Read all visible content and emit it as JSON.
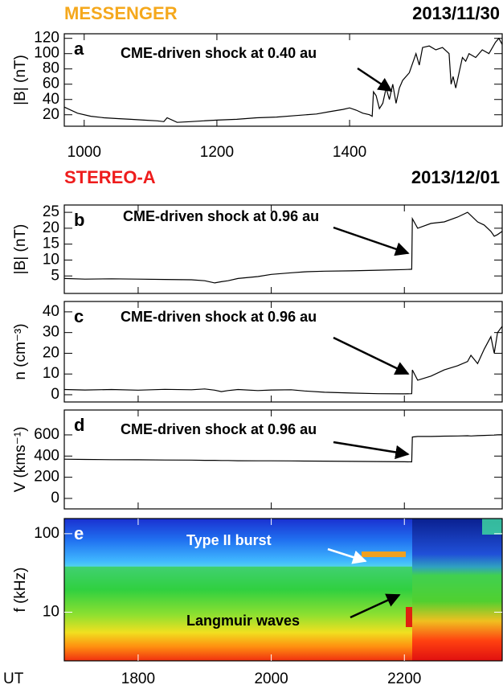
{
  "chart_data": [
    {
      "type": "line",
      "title": "MESSENGER",
      "subtitle": "2013/11/30",
      "panel_label": "a",
      "annotation": "CME-driven shock at 0.40 au",
      "ylabel": "|B| (nT)",
      "color": "#000000",
      "x": [
        970,
        990,
        1010,
        1030,
        1050,
        1070,
        1090,
        1110,
        1120,
        1125,
        1140,
        1160,
        1180,
        1200,
        1230,
        1260,
        1290,
        1320,
        1350,
        1370,
        1390,
        1400,
        1410,
        1420,
        1430,
        1434,
        1436,
        1440,
        1445,
        1450,
        1455,
        1460,
        1465,
        1470,
        1475,
        1480,
        1490,
        1500,
        1505,
        1510,
        1520,
        1530,
        1540,
        1550,
        1553,
        1556,
        1560,
        1565,
        1570,
        1575,
        1580,
        1590,
        1600,
        1610,
        1620,
        1625,
        1630
      ],
      "values": [
        30,
        22,
        18,
        16,
        15,
        14,
        13,
        12,
        11,
        16,
        10,
        11,
        12,
        13,
        14,
        16,
        17,
        19,
        21,
        24,
        27,
        29,
        26,
        22,
        20,
        18,
        50,
        45,
        28,
        35,
        55,
        40,
        60,
        35,
        55,
        65,
        75,
        100,
        85,
        108,
        110,
        105,
        108,
        100,
        60,
        70,
        55,
        75,
        95,
        90,
        100,
        95,
        105,
        100,
        115,
        120,
        112
      ],
      "xlim": [
        970,
        1630
      ],
      "xticks": [
        1000,
        1200,
        1400
      ],
      "ylim": [
        5,
        126
      ],
      "yticks": [
        20,
        40,
        60,
        80,
        100,
        120
      ]
    },
    {
      "type": "line",
      "title": "STEREO-A",
      "subtitle": "2013/12/01",
      "panel_label": "b",
      "annotation": "CME-driven shock at 0.96 au",
      "ylabel": "|B| (nT)",
      "color": "#000000",
      "x": [
        1689,
        1720,
        1760,
        1800,
        1840,
        1880,
        1900,
        1915,
        1925,
        1935,
        1950,
        1980,
        2000,
        2030,
        2050,
        2080,
        2120,
        2160,
        2200,
        2211,
        2212,
        2220,
        2240,
        2260,
        2280,
        2295,
        2300,
        2310,
        2320,
        2330,
        2335,
        2340,
        2347
      ],
      "values": [
        4.2,
        4,
        4.1,
        4,
        3.9,
        3.8,
        3.5,
        2.8,
        3.2,
        3.5,
        4.2,
        4.8,
        5.5,
        6,
        6.3,
        6.5,
        6.6,
        6.8,
        7,
        7.1,
        23,
        20,
        21.5,
        22,
        23.5,
        25,
        24,
        22,
        21,
        19,
        17.5,
        18,
        19
      ],
      "xlim": [
        1689,
        2347
      ],
      "xticks": [
        1800,
        2000,
        2200
      ],
      "ylim": [
        -0.5,
        27.3
      ],
      "yticks": [
        5,
        10,
        15,
        20,
        25
      ]
    },
    {
      "type": "line",
      "panel_label": "c",
      "annotation": "CME-driven shock at 0.96 au",
      "ylabel": "n (cm⁻³)",
      "color": "#000000",
      "x": [
        1689,
        1720,
        1760,
        1800,
        1840,
        1880,
        1900,
        1915,
        1925,
        1935,
        1950,
        1980,
        2000,
        2030,
        2050,
        2080,
        2120,
        2160,
        2200,
        2211,
        2212,
        2220,
        2240,
        2260,
        2280,
        2295,
        2300,
        2310,
        2320,
        2330,
        2335,
        2340,
        2347
      ],
      "values": [
        2.5,
        2.3,
        2.5,
        2.2,
        2.6,
        2.4,
        2.8,
        2.2,
        1.5,
        2,
        2.5,
        2,
        2.3,
        2.4,
        1.8,
        1.2,
        0.8,
        0.5,
        0.4,
        0.5,
        12,
        7,
        9,
        12,
        14,
        16,
        19,
        15,
        22,
        28,
        20,
        30,
        33
      ],
      "xlim": [
        1689,
        2347
      ],
      "xticks": [
        1800,
        2000,
        2200
      ],
      "ylim": [
        -3.5,
        45
      ],
      "yticks": [
        0,
        10,
        20,
        30,
        40
      ]
    },
    {
      "type": "line",
      "panel_label": "d",
      "annotation": "CME-driven shock at 0.96 au",
      "ylabel": "V (kms⁻¹)",
      "color": "#000000",
      "x": [
        1689,
        1720,
        1760,
        1800,
        1840,
        1880,
        1900,
        1915,
        1925,
        1935,
        1950,
        1980,
        2000,
        2030,
        2050,
        2080,
        2120,
        2160,
        2200,
        2211,
        2212,
        2220,
        2240,
        2260,
        2280,
        2295,
        2300,
        2310,
        2320,
        2330,
        2335,
        2340,
        2347
      ],
      "values": [
        370,
        368,
        366,
        365,
        363,
        362,
        360,
        360,
        358,
        358,
        356,
        355,
        355,
        354,
        353,
        352,
        350,
        348,
        346,
        345,
        580,
        585,
        585,
        588,
        590,
        592,
        590,
        593,
        595,
        597,
        598,
        600,
        602
      ],
      "xlim": [
        1689,
        2347
      ],
      "xticks": [
        1800,
        2000,
        2200
      ],
      "ylim": [
        -99,
        835
      ],
      "yticks": [
        0,
        200,
        400,
        600
      ]
    },
    {
      "type": "spectrogram",
      "panel_label": "e",
      "annotations": [
        "Type II burst",
        "Langmuir waves"
      ],
      "ylabel": "f (kHz)",
      "xlabel": "UT",
      "xlim": [
        1689,
        2347
      ],
      "xticks": [
        1800,
        2000,
        2200
      ],
      "ylim": [
        2.4,
        156
      ],
      "yticks": [
        10,
        100
      ],
      "y_log": true
    }
  ]
}
